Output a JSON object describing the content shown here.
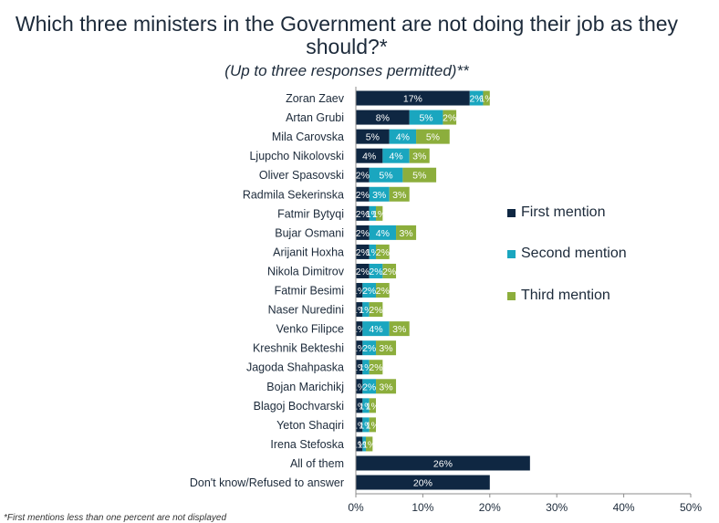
{
  "title": "Which three ministers in the Government are not doing their job as they should?*",
  "subtitle": "(Up to three responses permitted)**",
  "footnote": "*First mentions less than one percent are not displayed",
  "chart_data": {
    "type": "bar",
    "orientation": "horizontal",
    "stacked": true,
    "xlim": [
      0,
      50
    ],
    "x_ticks": [
      "0%",
      "10%",
      "20%",
      "30%",
      "40%",
      "50%"
    ],
    "categories": [
      "Zoran Zaev",
      "Artan Grubi",
      "Mila Carovska",
      "Ljupcho Nikolovski",
      "Oliver Spasovski",
      "Radmila Sekerinska",
      "Fatmir Bytyqi",
      "Bujar Osmani",
      "Arijanit Hoxha",
      "Nikola Dimitrov",
      "Fatmir Besimi",
      "Naser Nuredini",
      "Venko Filipce",
      "Kreshnik Bekteshi",
      "Jagoda Shahpaska",
      "Bojan Marichikj",
      "Blagoj Bochvarski",
      "Yeton Shaqiri",
      "Irena Stefoska",
      "All of them",
      "Don't know/Refused to answer"
    ],
    "series": [
      {
        "name": "First mention",
        "color": "#0f2742",
        "values": [
          17,
          8,
          5,
          4,
          2,
          2,
          2,
          2,
          2,
          2,
          1,
          1,
          1,
          1,
          1,
          1,
          1,
          1,
          1,
          26,
          20
        ],
        "labels": [
          "17%",
          "8%",
          "5%",
          "4%",
          "2%",
          "2%",
          "2%",
          "2%",
          "2%",
          "2%",
          "1%",
          "1%",
          "1%",
          "1%",
          "1%",
          "1%",
          "1%",
          "1%",
          "1%",
          "26%",
          "20%"
        ]
      },
      {
        "name": "Second mention",
        "color": "#1aa6bf",
        "values": [
          2,
          5,
          4,
          4,
          5,
          3,
          1,
          4,
          1,
          2,
          2,
          1,
          4,
          2,
          1,
          2,
          1,
          1,
          0.5,
          0,
          0
        ],
        "labels": [
          "2%",
          "5%",
          "4%",
          "4%",
          "5%",
          "3%",
          "1%",
          "4%",
          "1%",
          "2%",
          "2%",
          "1%",
          "4%",
          "2%",
          "1%",
          "2%",
          "1%",
          "1%",
          "1%",
          "",
          ""
        ]
      },
      {
        "name": "Third mention",
        "color": "#8cae3c",
        "values": [
          1,
          2,
          5,
          3,
          5,
          3,
          1,
          3,
          2,
          2,
          2,
          2,
          3,
          3,
          2,
          3,
          1,
          1,
          1,
          0,
          0
        ],
        "labels": [
          "1%",
          "2%",
          "5%",
          "3%",
          "5%",
          "3%",
          "1%",
          "3%",
          "2%",
          "2%",
          "2%",
          "2%",
          "3%",
          "3%",
          "2%",
          "3%",
          "1%",
          "1%",
          "1%",
          "",
          ""
        ]
      }
    ],
    "legend": {
      "position": "right",
      "entries": [
        "First mention",
        "Second mention",
        "Third mention"
      ]
    },
    "grid": false
  }
}
